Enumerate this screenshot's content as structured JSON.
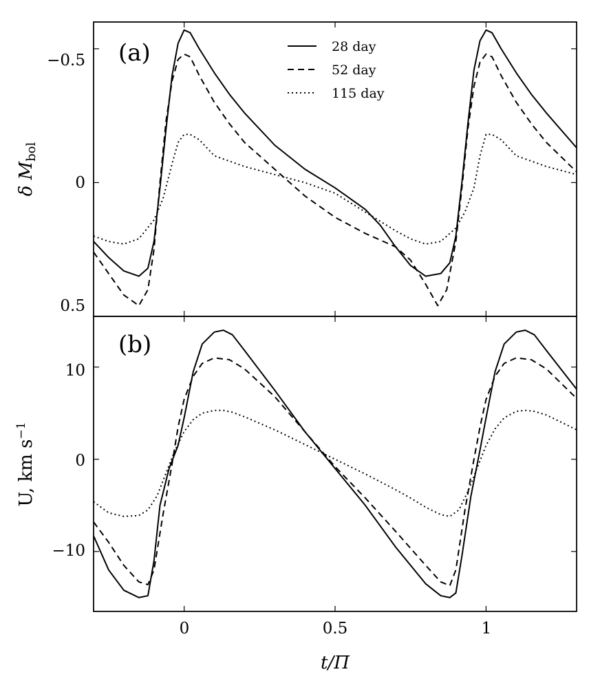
{
  "chart_data": [
    {
      "type": "line",
      "panel_label": "(a)",
      "ylabel": "δ M_bol",
      "ylabel_main": "δ M",
      "ylabel_sub": "bol",
      "xlim": [
        -0.3,
        1.3
      ],
      "ylim": [
        0.5,
        -0.6
      ],
      "yticks": [
        -0.5,
        0,
        0.5
      ],
      "ytick_labels": [
        "−0.5",
        "0",
        "0.5"
      ],
      "xticks": [
        0,
        0.5,
        1
      ],
      "legend": {
        "location": "top-center"
      },
      "series": [
        {
          "name": "28 day",
          "style": "solid",
          "x": [
            -0.3,
            -0.25,
            -0.2,
            -0.15,
            -0.12,
            -0.1,
            -0.08,
            -0.06,
            -0.04,
            -0.02,
            0.0,
            0.02,
            0.05,
            0.1,
            0.15,
            0.2,
            0.3,
            0.4,
            0.5,
            0.6,
            0.65,
            0.7,
            0.75,
            0.8,
            0.85,
            0.88,
            0.9,
            0.92,
            0.94,
            0.96,
            0.98,
            1.0,
            1.02,
            1.05,
            1.1,
            1.15,
            1.2,
            1.3
          ],
          "y": [
            0.22,
            0.28,
            0.33,
            0.35,
            0.32,
            0.22,
            0.02,
            -0.2,
            -0.4,
            -0.52,
            -0.57,
            -0.56,
            -0.5,
            -0.41,
            -0.33,
            -0.26,
            -0.14,
            -0.05,
            0.02,
            0.1,
            0.16,
            0.24,
            0.31,
            0.35,
            0.34,
            0.3,
            0.2,
            0.0,
            -0.22,
            -0.42,
            -0.53,
            -0.57,
            -0.56,
            -0.5,
            -0.41,
            -0.33,
            -0.26,
            -0.13
          ]
        },
        {
          "name": "52 day",
          "style": "dashed",
          "x": [
            -0.3,
            -0.25,
            -0.2,
            -0.15,
            -0.12,
            -0.1,
            -0.08,
            -0.06,
            -0.04,
            -0.02,
            0.0,
            0.02,
            0.05,
            0.1,
            0.15,
            0.2,
            0.3,
            0.4,
            0.5,
            0.6,
            0.7,
            0.75,
            0.8,
            0.84,
            0.87,
            0.9,
            0.92,
            0.94,
            0.96,
            0.98,
            1.0,
            1.02,
            1.05,
            1.1,
            1.15,
            1.2,
            1.3
          ],
          "y": [
            0.26,
            0.34,
            0.42,
            0.46,
            0.4,
            0.25,
            0.0,
            -0.23,
            -0.38,
            -0.46,
            -0.48,
            -0.47,
            -0.4,
            -0.3,
            -0.22,
            -0.15,
            -0.05,
            0.05,
            0.13,
            0.19,
            0.24,
            0.29,
            0.38,
            0.46,
            0.4,
            0.22,
            0.02,
            -0.2,
            -0.36,
            -0.45,
            -0.48,
            -0.47,
            -0.4,
            -0.3,
            -0.22,
            -0.15,
            -0.04
          ]
        },
        {
          "name": "115 day",
          "style": "dotted",
          "x": [
            -0.3,
            -0.25,
            -0.2,
            -0.15,
            -0.1,
            -0.07,
            -0.04,
            -0.02,
            0.0,
            0.02,
            0.05,
            0.1,
            0.2,
            0.3,
            0.4,
            0.5,
            0.6,
            0.7,
            0.75,
            0.8,
            0.85,
            0.9,
            0.93,
            0.96,
            0.98,
            1.0,
            1.02,
            1.05,
            1.1,
            1.2,
            1.3
          ],
          "y": [
            0.2,
            0.22,
            0.23,
            0.21,
            0.14,
            0.06,
            -0.07,
            -0.15,
            -0.18,
            -0.18,
            -0.16,
            -0.1,
            -0.06,
            -0.03,
            0.0,
            0.04,
            0.11,
            0.18,
            0.21,
            0.23,
            0.22,
            0.17,
            0.11,
            0.02,
            -0.1,
            -0.18,
            -0.18,
            -0.16,
            -0.1,
            -0.06,
            -0.03
          ]
        }
      ]
    },
    {
      "type": "line",
      "panel_label": "(b)",
      "ylabel": "U, km s^-1",
      "ylabel_main": "U, km s",
      "ylabel_sup": "−1",
      "xlabel": "t/Π",
      "xlim": [
        -0.3,
        1.3
      ],
      "ylim": [
        -16.5,
        15.5
      ],
      "yticks": [
        -10,
        0,
        10
      ],
      "ytick_labels": [
        "−10",
        "0",
        "10"
      ],
      "xticks": [
        0,
        0.5,
        1
      ],
      "xtick_labels": [
        "0",
        "0.5",
        "1"
      ],
      "series": [
        {
          "name": "28 day",
          "style": "solid",
          "x": [
            -0.3,
            -0.25,
            -0.2,
            -0.15,
            -0.12,
            -0.1,
            -0.08,
            -0.05,
            -0.02,
            0.0,
            0.03,
            0.06,
            0.1,
            0.13,
            0.16,
            0.2,
            0.3,
            0.4,
            0.5,
            0.6,
            0.7,
            0.8,
            0.85,
            0.88,
            0.9,
            0.92,
            0.95,
            0.98,
            1.0,
            1.03,
            1.06,
            1.1,
            1.13,
            1.16,
            1.2,
            1.3
          ],
          "y": [
            -8.3,
            -12.0,
            -14.2,
            -15.0,
            -14.8,
            -11.0,
            -5.0,
            -1.0,
            1.5,
            4.5,
            9.5,
            12.5,
            13.8,
            14.0,
            13.5,
            11.8,
            7.5,
            3.0,
            -1.0,
            -5.0,
            -9.5,
            -13.5,
            -14.8,
            -15.0,
            -14.5,
            -10.5,
            -4.0,
            1.0,
            4.5,
            9.5,
            12.5,
            13.8,
            14.0,
            13.5,
            11.8,
            7.6
          ]
        },
        {
          "name": "52 day",
          "style": "dashed",
          "x": [
            -0.3,
            -0.25,
            -0.2,
            -0.15,
            -0.12,
            -0.1,
            -0.07,
            -0.04,
            -0.02,
            0.0,
            0.03,
            0.06,
            0.1,
            0.15,
            0.2,
            0.3,
            0.4,
            0.5,
            0.6,
            0.7,
            0.8,
            0.85,
            0.88,
            0.9,
            0.93,
            0.96,
            0.98,
            1.0,
            1.03,
            1.06,
            1.1,
            1.15,
            1.2,
            1.3
          ],
          "y": [
            -6.8,
            -9.0,
            -11.5,
            -13.3,
            -13.6,
            -12.0,
            -6.0,
            -0.5,
            3.5,
            6.5,
            9.0,
            10.4,
            11.0,
            10.8,
            9.8,
            6.8,
            3.0,
            -0.8,
            -4.2,
            -7.8,
            -11.5,
            -13.3,
            -13.7,
            -12.0,
            -5.5,
            0.0,
            3.5,
            6.5,
            9.0,
            10.4,
            11.0,
            10.8,
            9.8,
            6.6
          ]
        },
        {
          "name": "115 day",
          "style": "dotted",
          "x": [
            -0.3,
            -0.25,
            -0.2,
            -0.15,
            -0.12,
            -0.09,
            -0.06,
            -0.03,
            0.0,
            0.03,
            0.06,
            0.1,
            0.13,
            0.16,
            0.2,
            0.3,
            0.4,
            0.5,
            0.6,
            0.7,
            0.75,
            0.8,
            0.85,
            0.88,
            0.91,
            0.94,
            0.97,
            1.0,
            1.03,
            1.06,
            1.1,
            1.13,
            1.16,
            1.2,
            1.3
          ],
          "y": [
            -4.6,
            -5.8,
            -6.2,
            -6.1,
            -5.5,
            -4.0,
            -1.5,
            1.0,
            3.0,
            4.3,
            5.0,
            5.3,
            5.3,
            5.1,
            4.6,
            3.2,
            1.6,
            0.0,
            -1.6,
            -3.3,
            -4.2,
            -5.2,
            -6.0,
            -6.2,
            -5.5,
            -3.5,
            -1.0,
            1.5,
            3.3,
            4.5,
            5.2,
            5.3,
            5.2,
            4.8,
            3.2
          ]
        }
      ]
    }
  ]
}
